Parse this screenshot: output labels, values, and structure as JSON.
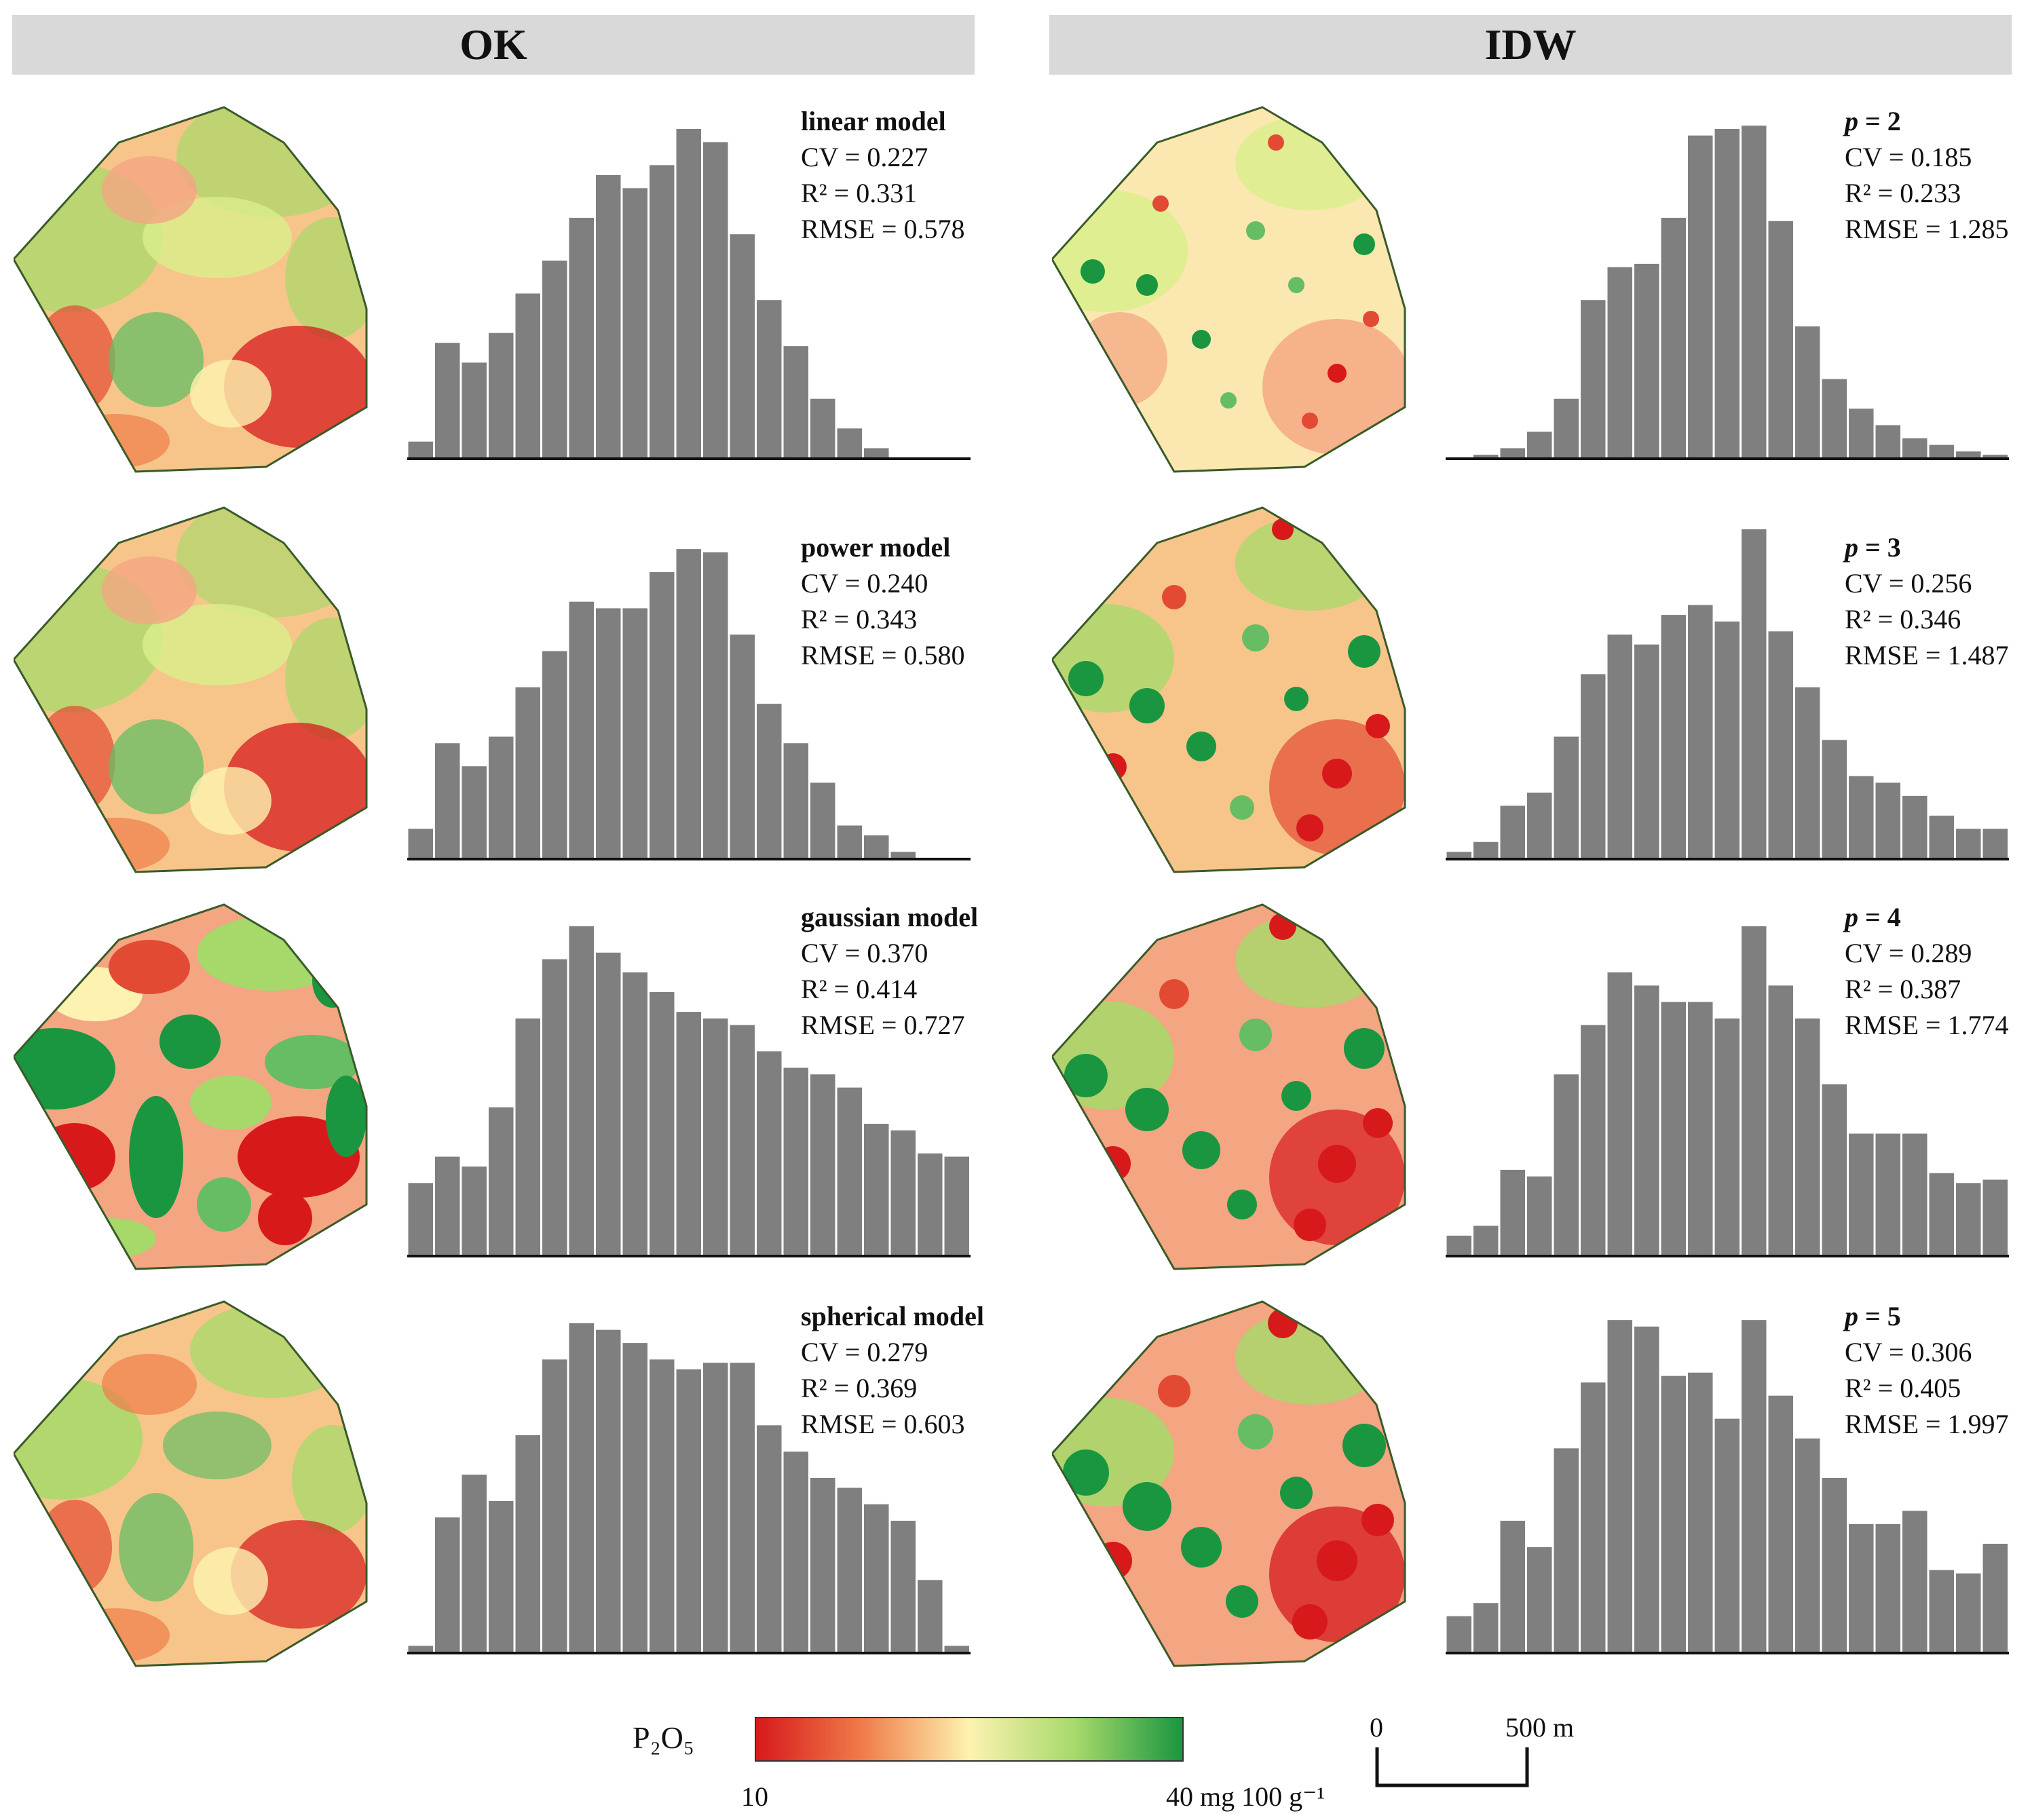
{
  "headers": {
    "ok": "OK",
    "idw": "IDW"
  },
  "legend": {
    "title": "P₂O₅",
    "min_label": "10",
    "max_label": "40 mg 100 g⁻¹",
    "colors": [
      "#d7191c",
      "#f07c4a",
      "#fdf2b0",
      "#a6d96a",
      "#1a9641"
    ]
  },
  "scale": {
    "zero_label": "0",
    "length_label": "500 m"
  },
  "panels": [
    {
      "group": "OK",
      "title": "linear model",
      "cv": "CV = 0.227",
      "r2": "R² = 0.331",
      "rmse": "RMSE = 0.578"
    },
    {
      "group": "OK",
      "title": "power model",
      "cv": "CV = 0.240",
      "r2": "R² = 0.343",
      "rmse": "RMSE = 0.580"
    },
    {
      "group": "OK",
      "title": "gaussian model",
      "cv": "CV = 0.370",
      "r2": "R² = 0.414",
      "rmse": "RMSE = 0.727"
    },
    {
      "group": "OK",
      "title": "spherical model",
      "cv": "CV = 0.279",
      "r2": "R² = 0.369",
      "rmse": "RMSE = 0.603"
    },
    {
      "group": "IDW",
      "title_var": "p",
      "title_value": " = 2",
      "cv": "CV = 0.185",
      "r2": "R² = 0.233",
      "rmse": "RMSE = 1.285"
    },
    {
      "group": "IDW",
      "title_var": "p",
      "title_value": " = 3",
      "cv": "CV = 0.256",
      "r2": "R² = 0.346",
      "rmse": "RMSE = 1.487"
    },
    {
      "group": "IDW",
      "title_var": "p",
      "title_value": " = 4",
      "cv": "CV = 0.289",
      "r2": "R² = 0.387",
      "rmse": "RMSE = 1.774"
    },
    {
      "group": "IDW",
      "title_var": "p",
      "title_value": " = 5",
      "cv": "CV = 0.306",
      "r2": "R² = 0.405",
      "rmse": "RMSE = 1.997"
    }
  ],
  "chart_data": [
    {
      "type": "bar",
      "title": "OK linear model",
      "xlabel": "",
      "ylabel": "",
      "ylim": [
        0,
        100
      ],
      "values": [
        5,
        35,
        29,
        38,
        50,
        60,
        73,
        86,
        82,
        89,
        100,
        96,
        68,
        48,
        34,
        18,
        9,
        3,
        0,
        0
      ]
    },
    {
      "type": "bar",
      "title": "OK power model",
      "xlabel": "",
      "ylabel": "",
      "ylim": [
        0,
        100
      ],
      "values": [
        9,
        35,
        28,
        37,
        52,
        63,
        78,
        76,
        76,
        87,
        94,
        93,
        68,
        47,
        35,
        23,
        10,
        7,
        2,
        0
      ]
    },
    {
      "type": "bar",
      "title": "OK gaussian model",
      "xlabel": "",
      "ylabel": "",
      "ylim": [
        0,
        100
      ],
      "values": [
        22,
        30,
        27,
        45,
        72,
        90,
        100,
        92,
        86,
        80,
        74,
        72,
        70,
        62,
        57,
        55,
        51,
        40,
        38,
        31,
        30
      ]
    },
    {
      "type": "bar",
      "title": "OK spherical model",
      "xlabel": "",
      "ylabel": "",
      "ylim": [
        0,
        100
      ],
      "values": [
        2,
        41,
        54,
        46,
        66,
        89,
        100,
        98,
        94,
        89,
        86,
        88,
        88,
        69,
        61,
        53,
        50,
        45,
        40,
        22,
        2
      ]
    },
    {
      "type": "bar",
      "title": "IDW p = 2",
      "xlabel": "",
      "ylabel": "",
      "ylim": [
        0,
        100
      ],
      "values": [
        0,
        1,
        3,
        8,
        18,
        48,
        58,
        59,
        73,
        98,
        100,
        101,
        72,
        40,
        24,
        15,
        10,
        6,
        4,
        2,
        1
      ]
    },
    {
      "type": "bar",
      "title": "IDW p = 3",
      "xlabel": "",
      "ylabel": "",
      "ylim": [
        0,
        100
      ],
      "values": [
        2,
        5,
        16,
        20,
        37,
        56,
        68,
        65,
        74,
        77,
        72,
        100,
        69,
        52,
        36,
        25,
        23,
        19,
        13,
        9,
        9
      ]
    },
    {
      "type": "bar",
      "title": "IDW p = 4",
      "xlabel": "",
      "ylabel": "",
      "ylim": [
        0,
        100
      ],
      "values": [
        6,
        9,
        26,
        24,
        55,
        70,
        86,
        82,
        77,
        77,
        72,
        100,
        82,
        72,
        52,
        37,
        37,
        37,
        25,
        22,
        23
      ]
    },
    {
      "type": "bar",
      "title": "IDW p = 5",
      "xlabel": "",
      "ylabel": "",
      "ylim": [
        0,
        100
      ],
      "values": [
        11,
        15,
        40,
        32,
        62,
        82,
        101,
        99,
        84,
        85,
        71,
        101,
        78,
        65,
        53,
        39,
        39,
        43,
        25,
        24,
        33
      ]
    }
  ]
}
